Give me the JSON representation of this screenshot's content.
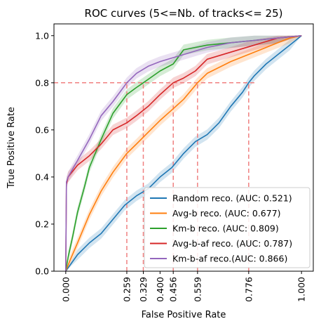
{
  "chart_data": {
    "type": "line",
    "title": "ROC curves (5<=Nb. of tracks<= 25)",
    "xlabel": "False Positive Rate",
    "ylabel": "True Positive Rate",
    "xlim": [
      -0.05,
      1.05
    ],
    "ylim": [
      0.0,
      1.05
    ],
    "x_ticks": [
      0.0,
      0.259,
      0.329,
      0.4,
      0.456,
      0.559,
      0.776,
      1.0
    ],
    "x_tick_labels": [
      "0.000",
      "0.259",
      "0.329",
      "0.400",
      "0.456",
      "0.559",
      "0.776",
      "1.000"
    ],
    "y_ticks": [
      0.0,
      0.2,
      0.4,
      0.6,
      0.8,
      1.0
    ],
    "y_tick_labels": [
      "0.0",
      "0.2",
      "0.4",
      "0.6",
      "0.8",
      "1.0"
    ],
    "grid": false,
    "legend_position": "lower-right",
    "reference_lines": {
      "color": "#f08080",
      "horizontal_y": 0.8,
      "horizontal_x_range": [
        -0.05,
        0.8
      ],
      "vertical_x": [
        0.259,
        0.329,
        0.456,
        0.559,
        0.776
      ],
      "vertical_y_to": 0.8
    },
    "series": [
      {
        "name": "Random reco. (AUC: 0.521)",
        "color": "#1f77b4",
        "x": [
          0.0,
          0.05,
          0.1,
          0.15,
          0.2,
          0.25,
          0.3,
          0.35,
          0.4,
          0.45,
          0.5,
          0.55,
          0.6,
          0.65,
          0.7,
          0.75,
          0.776,
          0.8,
          0.85,
          0.9,
          0.95,
          1.0
        ],
        "y": [
          0.0,
          0.07,
          0.12,
          0.16,
          0.22,
          0.28,
          0.32,
          0.35,
          0.4,
          0.44,
          0.5,
          0.55,
          0.58,
          0.63,
          0.7,
          0.76,
          0.8,
          0.83,
          0.88,
          0.92,
          0.96,
          1.0
        ]
      },
      {
        "name": "Avg-b reco. (AUC: 0.677)",
        "color": "#ff7f0e",
        "x": [
          0.0,
          0.02,
          0.05,
          0.1,
          0.15,
          0.2,
          0.259,
          0.3,
          0.35,
          0.4,
          0.456,
          0.5,
          0.559,
          0.6,
          0.7,
          0.8,
          0.9,
          0.95,
          1.0
        ],
        "y": [
          0.0,
          0.05,
          0.12,
          0.24,
          0.34,
          0.42,
          0.5,
          0.54,
          0.59,
          0.64,
          0.69,
          0.73,
          0.8,
          0.84,
          0.89,
          0.93,
          0.97,
          0.99,
          1.0
        ]
      },
      {
        "name": "Km-b reco. (AUC: 0.809)",
        "color": "#2ca02c",
        "x": [
          0.0,
          0.01,
          0.03,
          0.05,
          0.08,
          0.1,
          0.15,
          0.2,
          0.259,
          0.3,
          0.329,
          0.4,
          0.456,
          0.5,
          0.6,
          0.7,
          0.8,
          0.9,
          1.0
        ],
        "y": [
          0.0,
          0.06,
          0.15,
          0.25,
          0.36,
          0.44,
          0.56,
          0.67,
          0.75,
          0.78,
          0.8,
          0.85,
          0.88,
          0.94,
          0.96,
          0.97,
          0.98,
          0.99,
          1.0
        ]
      },
      {
        "name": "Avg-b-af reco. (AUC: 0.787)",
        "color": "#d62728",
        "x": [
          0.0,
          0.003,
          0.01,
          0.05,
          0.1,
          0.15,
          0.2,
          0.259,
          0.3,
          0.35,
          0.4,
          0.456,
          0.5,
          0.55,
          0.6,
          0.7,
          0.8,
          0.9,
          1.0
        ],
        "y": [
          0.0,
          0.37,
          0.4,
          0.45,
          0.49,
          0.54,
          0.6,
          0.63,
          0.66,
          0.7,
          0.75,
          0.8,
          0.82,
          0.85,
          0.9,
          0.93,
          0.96,
          0.99,
          1.0
        ]
      },
      {
        "name": "Km-b-af reco.(AUC: 0.866)",
        "color": "#9467bd",
        "x": [
          0.0,
          0.003,
          0.01,
          0.05,
          0.1,
          0.15,
          0.2,
          0.259,
          0.3,
          0.35,
          0.4,
          0.5,
          0.6,
          0.7,
          0.8,
          0.9,
          1.0
        ],
        "y": [
          0.0,
          0.38,
          0.4,
          0.47,
          0.56,
          0.66,
          0.72,
          0.8,
          0.84,
          0.87,
          0.89,
          0.92,
          0.95,
          0.97,
          0.98,
          0.99,
          1.0
        ]
      }
    ]
  }
}
